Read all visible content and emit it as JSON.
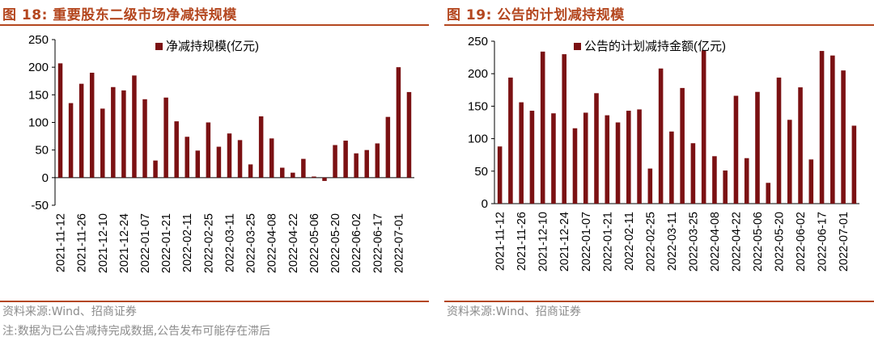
{
  "colors": {
    "accent": "#b4471f",
    "bar": "#7b1113",
    "source_text": "#8c8c8c"
  },
  "left": {
    "title": "图 18:  重要股东二级市场净减持规模",
    "source": "资料来源:Wind、招商证券",
    "note": "注:数据为已公告减持完成数据,公告发布可能存在滞后"
  },
  "right": {
    "title": "图 19:  公告的计划减持规模",
    "source": "资料来源:Wind、招商证券"
  },
  "chart_data": [
    {
      "type": "bar",
      "title": "",
      "legend": "净减持规模(亿元)",
      "legend_position": "top-center",
      "ylim": [
        -50,
        250
      ],
      "yticks": [
        -50,
        0,
        50,
        100,
        150,
        200,
        250
      ],
      "xtick_labels": [
        "2021-11-12",
        "2021-11-26",
        "2021-12-10",
        "2021-12-24",
        "2022-01-07",
        "2022-01-21",
        "2022-02-11",
        "2022-02-25",
        "2022-03-11",
        "2022-03-25",
        "2022-04-08",
        "2022-04-22",
        "2022-05-06",
        "2022-05-20",
        "2022-06-02",
        "2022-06-17",
        "2022-07-01"
      ],
      "values": [
        207,
        135,
        170,
        190,
        125,
        164,
        158,
        185,
        142,
        31,
        145,
        102,
        74,
        49,
        100,
        56,
        80,
        68,
        24,
        111,
        71,
        18,
        9,
        34,
        2,
        -6,
        59,
        67,
        44,
        50,
        62,
        110,
        200,
        155
      ]
    },
    {
      "type": "bar",
      "title": "",
      "legend": "公告的计划减持金额(亿元)",
      "legend_position": "top-center",
      "ylim": [
        0,
        250
      ],
      "yticks": [
        0,
        50,
        100,
        150,
        200,
        250
      ],
      "xtick_labels": [
        "2021-11-12",
        "2021-11-26",
        "2021-12-10",
        "2021-12-24",
        "2022-01-07",
        "2022-01-21",
        "2022-02-11",
        "2022-02-25",
        "2022-03-11",
        "2022-03-25",
        "2022-04-08",
        "2022-04-22",
        "2022-05-06",
        "2022-05-20",
        "2022-06-02",
        "2022-06-17",
        "2022-07-01"
      ],
      "values": [
        88,
        194,
        156,
        143,
        234,
        139,
        230,
        116,
        140,
        170,
        136,
        125,
        143,
        145,
        54,
        208,
        111,
        178,
        93,
        236,
        73,
        51,
        166,
        70,
        172,
        32,
        194,
        129,
        179,
        68,
        235,
        228,
        205,
        120
      ]
    }
  ]
}
